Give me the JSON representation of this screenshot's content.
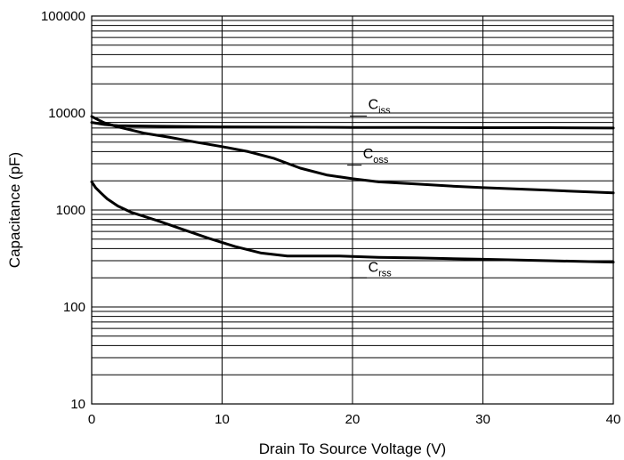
{
  "chart_data": {
    "type": "line",
    "xlabel": "Drain To Source Voltage (V)",
    "ylabel": "Capacitance (pF)",
    "xlim": [
      0,
      40
    ],
    "ylim": [
      10,
      100000
    ],
    "yscale": "log",
    "grid": true,
    "x_ticks": [
      0,
      10,
      20,
      30,
      40
    ],
    "x_tick_labels": [
      "0",
      "10",
      "20",
      "30",
      "40"
    ],
    "y_ticks": [
      10,
      100,
      1000,
      10000,
      100000
    ],
    "y_tick_labels": [
      "10",
      "100",
      "1000",
      "10000",
      "100000"
    ],
    "series": [
      {
        "name": "C_iss",
        "label_main": "C",
        "label_sub": "iss",
        "x": [
          0,
          1,
          2,
          5,
          10,
          15,
          20,
          25,
          30,
          35,
          40
        ],
        "y": [
          8000,
          7600,
          7400,
          7300,
          7200,
          7150,
          7100,
          7100,
          7050,
          7050,
          7000
        ]
      },
      {
        "name": "C_oss",
        "label_main": "C",
        "label_sub": "oss",
        "x": [
          0,
          0.5,
          1,
          2,
          4,
          6,
          8,
          10,
          12,
          14,
          16,
          18,
          20,
          22,
          25,
          28,
          30,
          35,
          40
        ],
        "y": [
          9200,
          8500,
          7900,
          7200,
          6200,
          5600,
          5000,
          4500,
          4000,
          3400,
          2700,
          2300,
          2100,
          1950,
          1850,
          1750,
          1700,
          1600,
          1500
        ]
      },
      {
        "name": "C_rss",
        "label_main": "C",
        "label_sub": "rss",
        "x": [
          0,
          0.3,
          0.7,
          1.2,
          2,
          3,
          5,
          7,
          9,
          11,
          13,
          15,
          17,
          19,
          22,
          25,
          30,
          35,
          40
        ],
        "y": [
          1950,
          1700,
          1500,
          1300,
          1100,
          950,
          780,
          630,
          510,
          420,
          360,
          335,
          335,
          335,
          325,
          320,
          310,
          300,
          290
        ]
      }
    ],
    "label_positions": [
      {
        "series": "C_iss",
        "x": 21.2,
        "y": 11000,
        "leader": [
          [
            19.8,
            9300
          ],
          [
            21.1,
            9300
          ]
        ]
      },
      {
        "series": "C_oss",
        "x": 20.8,
        "y": 3400,
        "leader": [
          [
            19.6,
            2900
          ],
          [
            20.7,
            2900
          ]
        ]
      },
      {
        "series": "C_rss",
        "x": 21.2,
        "y": 230,
        "leader": [
          [
            19.8,
            200
          ],
          [
            21.1,
            200
          ]
        ]
      }
    ]
  }
}
